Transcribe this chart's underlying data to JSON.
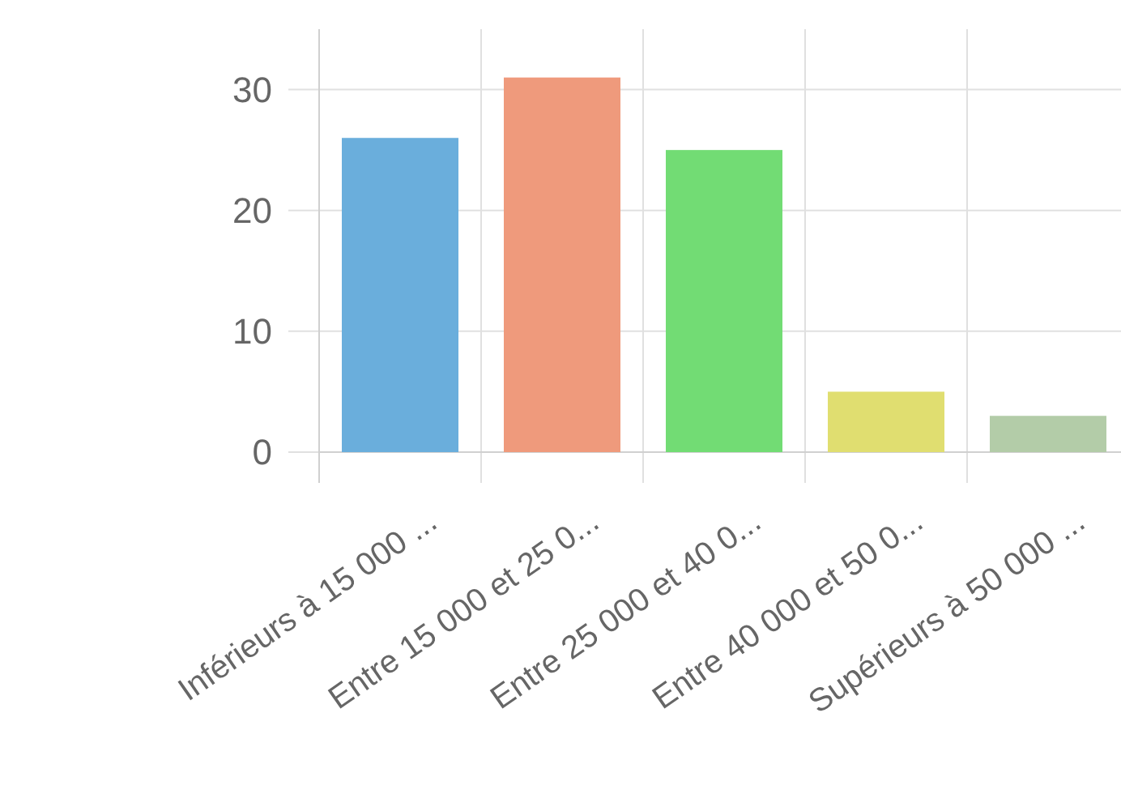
{
  "chart_data": {
    "type": "bar",
    "categories": [
      "Inférieurs à 15 000 ...",
      "Entre 15 000 et 25 0...",
      "Entre 25 000 et 40 0...",
      "Entre 40 000 et 50 0...",
      "Supérieurs à 50 000 ..."
    ],
    "values": [
      26,
      31,
      25,
      5,
      3
    ],
    "colors": [
      "#6aaedc",
      "#ef9a7c",
      "#72dc74",
      "#e0de70",
      "#b3cca8"
    ],
    "ylim": [
      0,
      35
    ],
    "yticks": [
      0,
      10,
      20,
      30
    ],
    "grid": true
  }
}
